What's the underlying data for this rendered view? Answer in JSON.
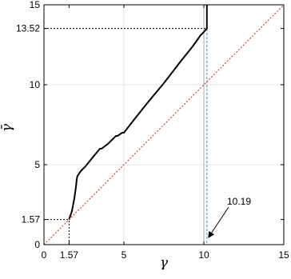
{
  "chart_data": {
    "type": "line",
    "title": "",
    "xlabel": "γ",
    "ylabel": "γ̄",
    "xlim": [
      0,
      15
    ],
    "ylim": [
      0,
      15
    ],
    "grid": true,
    "x_ticks": [
      {
        "value": 0,
        "label": "0"
      },
      {
        "value": 1.57,
        "label": "1.57"
      },
      {
        "value": 5,
        "label": "5"
      },
      {
        "value": 10,
        "label": "10"
      },
      {
        "value": 15,
        "label": "15"
      }
    ],
    "y_ticks": [
      {
        "value": 0,
        "label": "0"
      },
      {
        "value": 1.57,
        "label": "1.57"
      },
      {
        "value": 5,
        "label": "5"
      },
      {
        "value": 10,
        "label": "10"
      },
      {
        "value": 13.52,
        "label": "13.52"
      },
      {
        "value": 15,
        "label": "15"
      }
    ],
    "series": [
      {
        "color": "#000000",
        "style": "solid",
        "x": [
          1.57,
          1.75,
          1.9,
          2.0,
          2.05,
          2.1,
          2.3,
          2.6,
          3.0,
          3.5,
          3.6,
          4.0,
          4.5,
          4.6,
          4.9,
          5.0,
          5.7,
          6.5,
          7.5,
          8.5,
          9.3,
          9.8,
          10.0,
          10.19,
          10.19
        ],
        "y": [
          1.57,
          2.1,
          2.9,
          3.6,
          4.1,
          4.3,
          4.6,
          4.9,
          5.4,
          6.0,
          6.0,
          6.3,
          6.8,
          6.8,
          7.0,
          7.0,
          7.9,
          8.9,
          10.1,
          11.4,
          12.4,
          13.1,
          13.3,
          13.52,
          15.0
        ]
      },
      {
        "color": "#d9342b",
        "style": "dotted",
        "x": [
          0,
          15
        ],
        "y": [
          0,
          15
        ]
      }
    ],
    "vertical_lines": [
      {
        "x": 10.0,
        "color": "#aaaaaa",
        "style": "solid"
      },
      {
        "x": 10.19,
        "color": "#3399cc",
        "style": "dashed"
      }
    ],
    "reference_lines": [
      {
        "from": [
          0,
          13.52
        ],
        "to": [
          10.19,
          13.52
        ]
      },
      {
        "from": [
          0,
          1.57
        ],
        "to": [
          1.57,
          1.57
        ]
      },
      {
        "from": [
          1.57,
          0
        ],
        "to": [
          1.57,
          1.57
        ]
      }
    ],
    "annotations": [
      {
        "text": "10.19",
        "x": 10.19,
        "y": 0.4
      }
    ]
  }
}
